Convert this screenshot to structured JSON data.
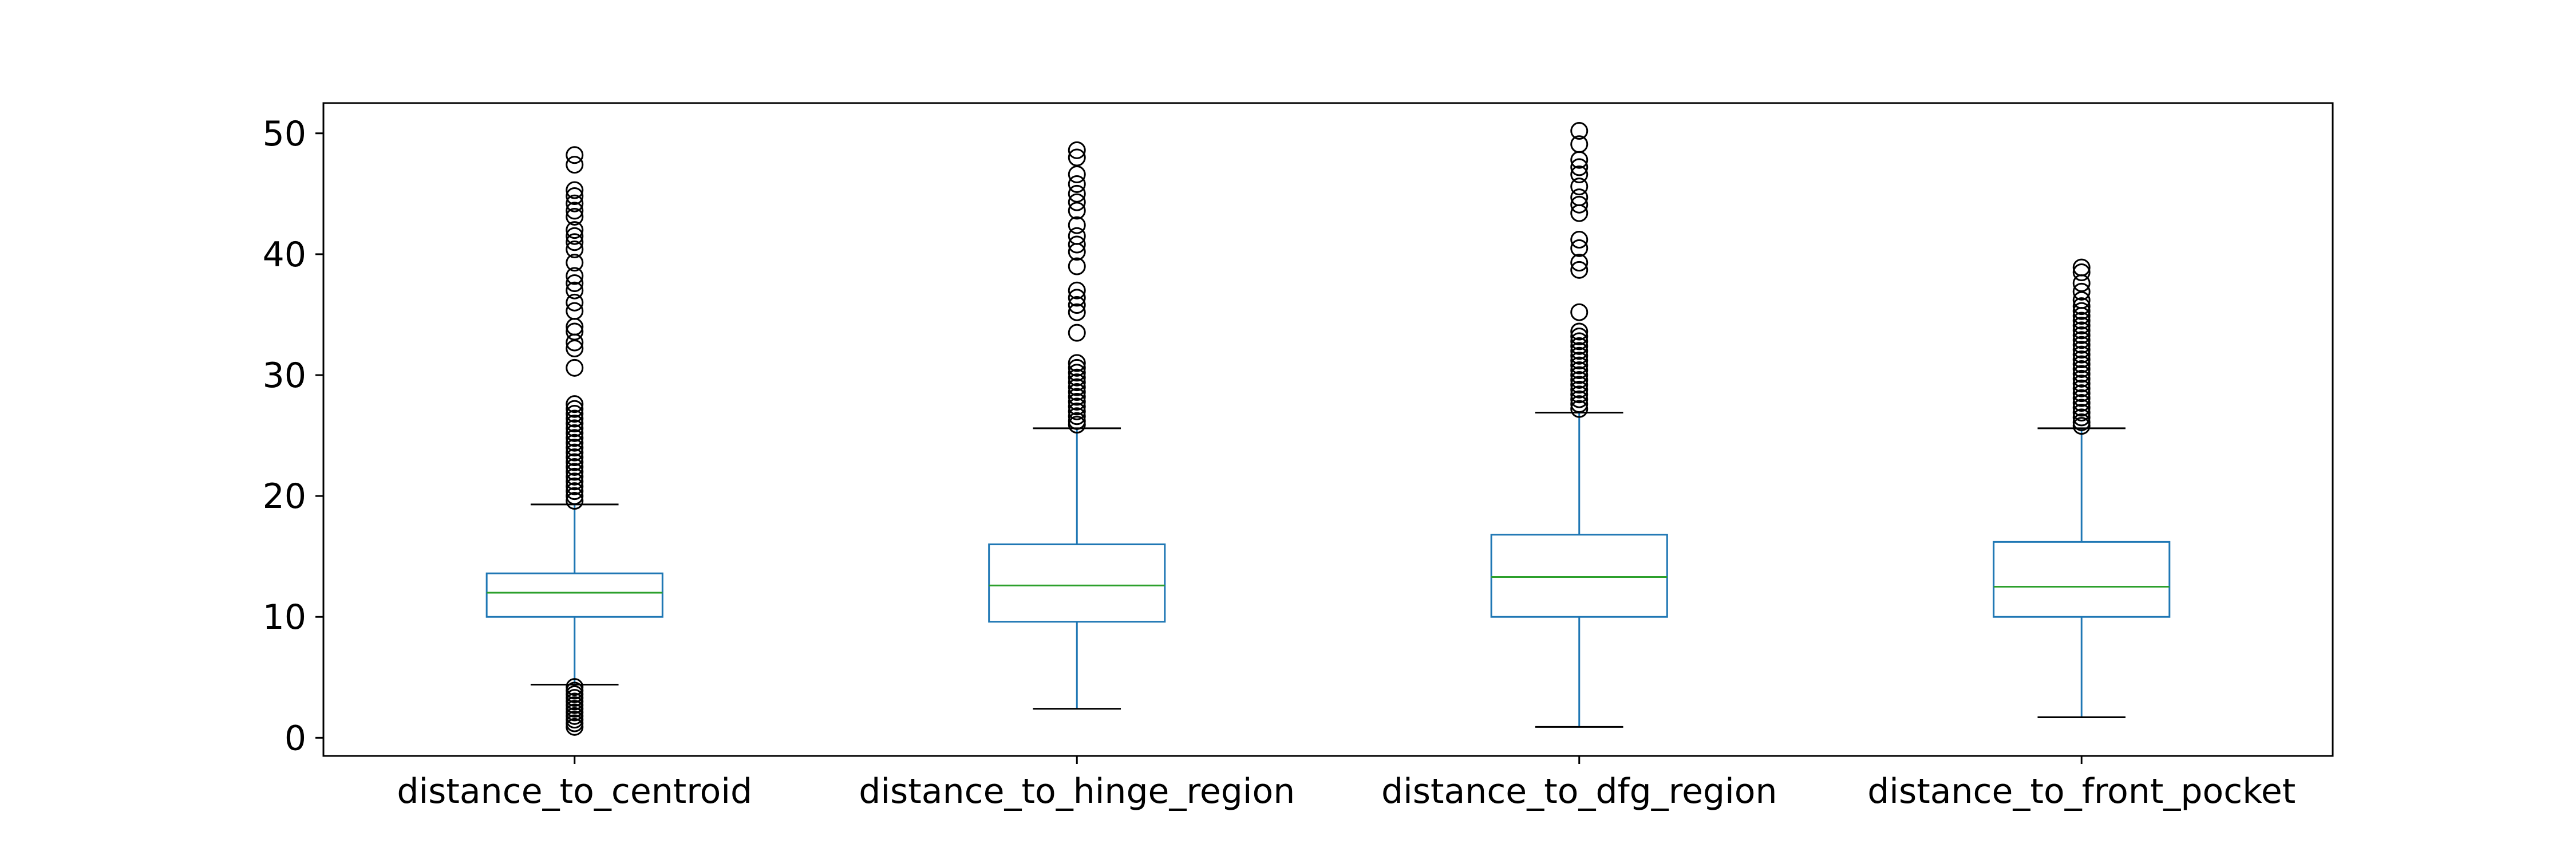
{
  "chart_data": {
    "type": "box",
    "title": "",
    "xlabel": "",
    "ylabel": "",
    "ylim": [
      -1.5,
      52.5
    ],
    "yticks": [
      0,
      10,
      20,
      30,
      40,
      50
    ],
    "grid": false,
    "colors": {
      "box": "#1f77b4",
      "median": "#2ca02c",
      "whisker_cap": "#000000",
      "flier": "#000000"
    },
    "categories": [
      "distance_to_centroid",
      "distance_to_hinge_region",
      "distance_to_dfg_region",
      "distance_to_front_pocket"
    ],
    "boxes": [
      {
        "label": "distance_to_centroid",
        "whisker_low": 4.4,
        "q1": 10.0,
        "median": 12.0,
        "q3": 13.6,
        "whisker_high": 19.3,
        "fliers": [
          48.2,
          47.4,
          45.3,
          44.8,
          44.2,
          43.6,
          43.1,
          42.0,
          41.5,
          41.0,
          40.4,
          39.3,
          38.2,
          37.6,
          37.0,
          36.0,
          35.3,
          34.0,
          33.6,
          32.7,
          32.2,
          30.6,
          27.6,
          27.2,
          26.8,
          26.4,
          26.0,
          25.6,
          25.2,
          24.8,
          24.4,
          24.0,
          23.6,
          23.2,
          22.8,
          22.4,
          22.0,
          21.6,
          21.2,
          20.8,
          20.4,
          20.0,
          19.6,
          4.2,
          3.9,
          3.6,
          3.3,
          3.0,
          2.7,
          2.4,
          2.1,
          1.8,
          1.5,
          1.2,
          0.9
        ]
      },
      {
        "label": "distance_to_hinge_region",
        "whisker_low": 2.4,
        "q1": 9.6,
        "median": 12.6,
        "q3": 16.0,
        "whisker_high": 25.6,
        "fliers": [
          48.6,
          48.0,
          46.6,
          45.8,
          45.0,
          44.3,
          43.6,
          42.4,
          41.5,
          40.8,
          40.2,
          39.0,
          37.0,
          36.4,
          35.8,
          35.2,
          33.5,
          31.0,
          30.6,
          30.2,
          29.8,
          29.4,
          29.0,
          28.6,
          28.2,
          27.8,
          27.4,
          27.0,
          26.6,
          26.2,
          25.9
        ]
      },
      {
        "label": "distance_to_dfg_region",
        "whisker_low": 0.9,
        "q1": 10.0,
        "median": 13.3,
        "q3": 16.8,
        "whisker_high": 26.9,
        "fliers": [
          50.2,
          49.1,
          47.8,
          47.2,
          46.6,
          45.6,
          44.7,
          44.1,
          43.4,
          41.2,
          40.5,
          39.3,
          38.7,
          35.2,
          33.6,
          33.2,
          32.8,
          32.4,
          32.0,
          31.6,
          31.2,
          30.8,
          30.4,
          30.0,
          29.6,
          29.2,
          28.8,
          28.4,
          28.0,
          27.6,
          27.2
        ]
      },
      {
        "label": "distance_to_front_pocket",
        "whisker_low": 1.7,
        "q1": 10.0,
        "median": 12.5,
        "q3": 16.2,
        "whisker_high": 25.6,
        "fliers": [
          38.9,
          38.5,
          37.6,
          36.9,
          36.2,
          35.7,
          35.3,
          34.9,
          34.5,
          34.1,
          33.7,
          33.3,
          32.9,
          32.5,
          32.1,
          31.7,
          31.3,
          30.9,
          30.5,
          30.1,
          29.7,
          29.3,
          28.9,
          28.5,
          28.1,
          27.7,
          27.3,
          26.9,
          26.5,
          26.1,
          25.8
        ]
      }
    ]
  }
}
